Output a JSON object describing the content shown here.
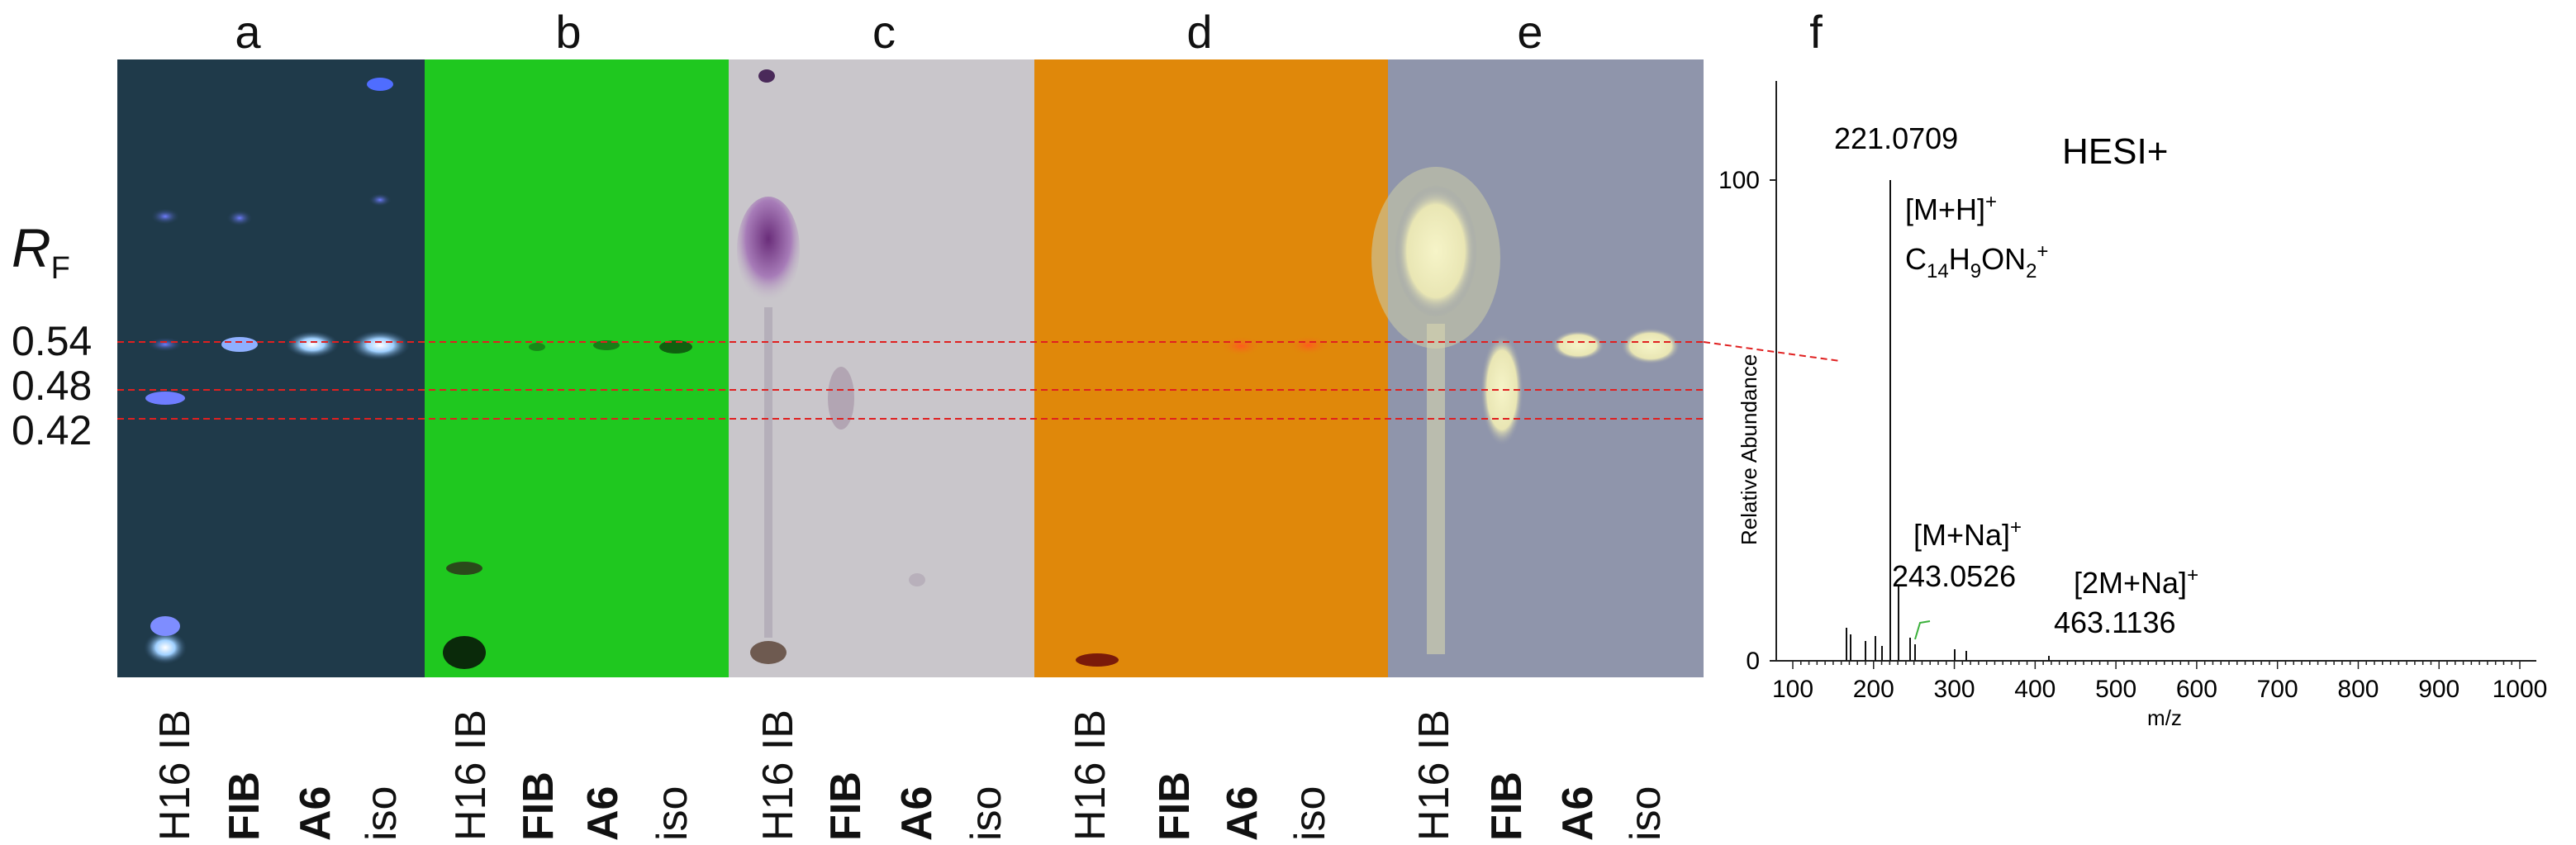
{
  "panels": {
    "a": {
      "label": "a"
    },
    "b": {
      "label": "b"
    },
    "c": {
      "label": "c"
    },
    "d": {
      "label": "d"
    },
    "e": {
      "label": "e"
    },
    "f": {
      "label": "f"
    }
  },
  "rf": {
    "symbol": "R",
    "subscript": "F",
    "values": [
      "0.54",
      "0.48",
      "0.42"
    ]
  },
  "lanes": [
    "H16 IB",
    "FIB",
    "A6",
    "iso"
  ],
  "plate_colors": {
    "a": "#1f3a4a",
    "b": "#1fc81f",
    "c": "#c9c6cb",
    "d": "#e0880a",
    "e": "#8f95ab"
  },
  "guide_line_color": "#e02020",
  "spectrum": {
    "mode_label": "HESI+",
    "y_axis_label": "Relative Abundance",
    "x_axis_label": "m/z",
    "y_ticks": [
      "0",
      "100"
    ],
    "x_ticks": [
      "100",
      "200",
      "300",
      "400",
      "500",
      "600",
      "700",
      "800",
      "900",
      "1000"
    ],
    "main_peak": {
      "mz": "221.0709",
      "ion": "[M+H]",
      "charge": "+",
      "formula": "C14H9ON2+"
    },
    "na_peak": {
      "mz": "243.0526",
      "ion": "[M+Na]",
      "charge": "+"
    },
    "dimer_peak": {
      "mz": "463.1136",
      "ion": "[2M+Na]",
      "charge": "+"
    }
  }
}
